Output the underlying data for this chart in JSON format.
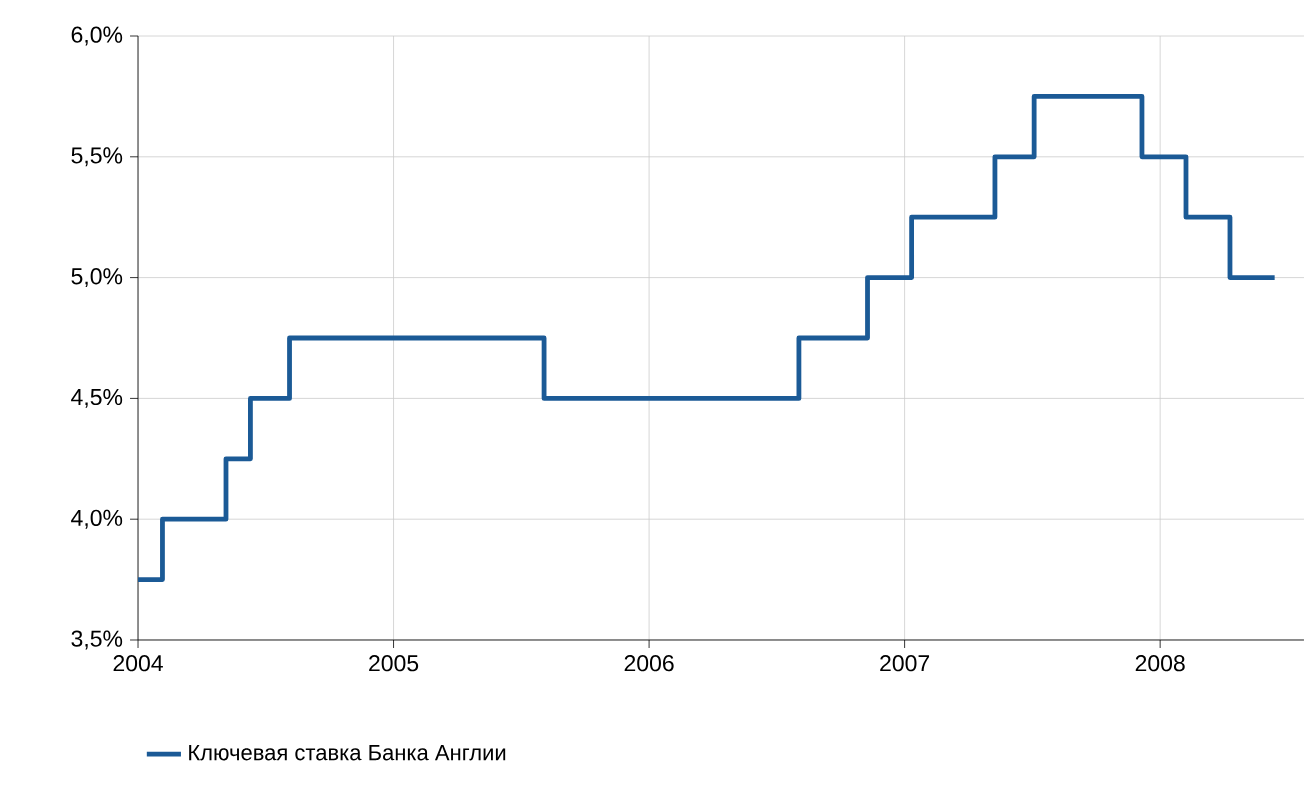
{
  "chart_data": {
    "type": "step",
    "x": [
      "2004-01-01",
      "2004-02-05",
      "2004-05-06",
      "2004-06-10",
      "2004-08-05",
      "2005-08-04",
      "2006-08-03",
      "2006-11-09",
      "2007-01-11",
      "2007-05-10",
      "2007-07-05",
      "2007-12-06",
      "2008-02-07",
      "2008-04-10",
      "2008-06-13"
    ],
    "series": [
      {
        "name": "Ключевая ставка Банка Англии",
        "color": "#1b5a96",
        "values": [
          3.75,
          4.0,
          4.25,
          4.5,
          4.75,
          4.5,
          4.75,
          5.0,
          5.25,
          5.5,
          5.75,
          5.5,
          5.25,
          5.0,
          5.0
        ]
      }
    ],
    "xlim": [
      "2004-01-01",
      "2008-07-25"
    ],
    "xticks": [
      {
        "value": "2004",
        "label": "2004"
      },
      {
        "value": "2005",
        "label": "2005"
      },
      {
        "value": "2006",
        "label": "2006"
      },
      {
        "value": "2007",
        "label": "2007"
      },
      {
        "value": "2008",
        "label": "2008"
      }
    ],
    "ylim": [
      3.5,
      6.0
    ],
    "yticks": [
      {
        "value": 3.5,
        "label": "3,5%"
      },
      {
        "value": 4.0,
        "label": "4,0%"
      },
      {
        "value": 4.5,
        "label": "4,5%"
      },
      {
        "value": 5.0,
        "label": "5,0%"
      },
      {
        "value": 5.5,
        "label": "5,5%"
      },
      {
        "value": 6.0,
        "label": "6,0%"
      }
    ],
    "grid": true,
    "legend": "bottom left",
    "line_style": "solid",
    "marker": "none"
  }
}
